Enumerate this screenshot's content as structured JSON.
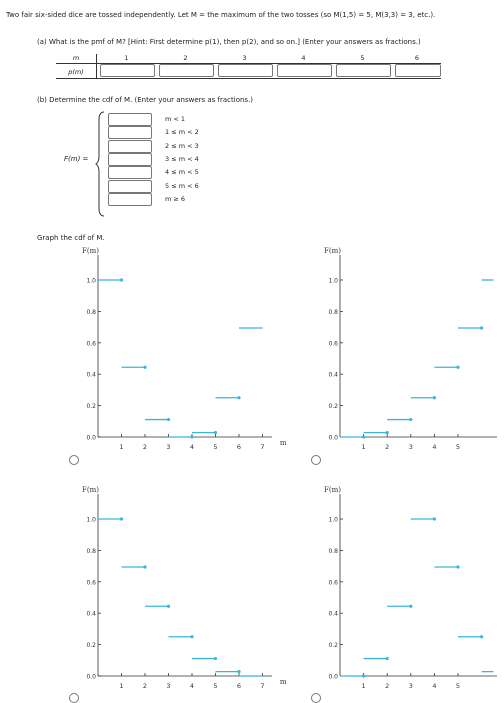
{
  "problem": "Two fair six-sided dice are tossed independently. Let M = the maximum of the two tosses (so M(1,5) = 5, M(3,3) = 3, etc.).",
  "part_a": {
    "prompt": "(a) What is the pmf of M? [Hint: First determine p(1), then p(2), and so on.] (Enter your answers as fractions.)",
    "row_labels": [
      "m",
      "p(m)"
    ],
    "columns": [
      "1",
      "2",
      "3",
      "4",
      "5",
      "6"
    ]
  },
  "part_b": {
    "prompt": "(b) Determine the cdf of M. (Enter your answers as fractions.)",
    "func_label": "F(m) =",
    "ranges": [
      "m < 1",
      "1 ≤ m < 2",
      "2 ≤ m < 3",
      "3 ≤ m < 4",
      "4 ≤ m < 5",
      "5 ≤ m < 6",
      "m ≥ 6"
    ]
  },
  "graph_prompt": "Graph the cdf of M.",
  "graph_colors": {
    "line": "#3ab4dc",
    "axis": "#333333"
  },
  "chart_data": [
    {
      "type": "step",
      "ylabel": "F(m)",
      "xlabel": "m",
      "x_ticks": [
        1,
        2,
        3,
        4,
        5,
        6,
        7
      ],
      "y_ticks": [
        "0.0",
        "0.2",
        "0.4",
        "0.6",
        "0.8",
        "1.0"
      ],
      "xlim": [
        0,
        7.4
      ],
      "ylim": [
        0,
        1.0
      ],
      "steps": [
        [
          0,
          1,
          1.0
        ],
        [
          1,
          2,
          0.4444
        ],
        [
          2,
          3,
          0.1111
        ],
        [
          3,
          4,
          0.0
        ],
        [
          4,
          5,
          0.0278
        ],
        [
          5,
          6,
          0.25
        ],
        [
          6,
          7,
          0.6944
        ]
      ]
    },
    {
      "type": "step",
      "ylabel": "F(m)",
      "xlabel": "",
      "x_ticks": [
        1,
        2,
        3,
        4,
        5
      ],
      "y_ticks": [
        "0.0",
        "0.2",
        "0.4",
        "0.6",
        "0.8",
        "1.0"
      ],
      "xlim": [
        0,
        6.2
      ],
      "ylim": [
        0,
        1.0
      ],
      "steps": [
        [
          0,
          1,
          0.0
        ],
        [
          1,
          2,
          0.0278
        ],
        [
          2,
          3,
          0.1111
        ],
        [
          3,
          4,
          0.25
        ],
        [
          4,
          5,
          0.4444
        ],
        [
          5,
          6,
          0.6944
        ],
        [
          6,
          6.5,
          1.0
        ]
      ]
    },
    {
      "type": "step",
      "ylabel": "F(m)",
      "xlabel": "m",
      "x_ticks": [
        1,
        2,
        3,
        4,
        5,
        6,
        7
      ],
      "y_ticks": [
        "0.0",
        "0.2",
        "0.4",
        "0.6",
        "0.8",
        "1.0"
      ],
      "xlim": [
        0,
        7.4
      ],
      "ylim": [
        0,
        1.0
      ],
      "steps": [
        [
          0,
          1,
          1.0
        ],
        [
          1,
          2,
          0.6944
        ],
        [
          2,
          3,
          0.4444
        ],
        [
          3,
          4,
          0.25
        ],
        [
          4,
          5,
          0.1111
        ],
        [
          5,
          6,
          0.0278
        ],
        [
          6,
          7,
          0.0
        ]
      ]
    },
    {
      "type": "step",
      "ylabel": "F(m)",
      "xlabel": "",
      "x_ticks": [
        1,
        2,
        3,
        4,
        5
      ],
      "y_ticks": [
        "0.0",
        "0.2",
        "0.4",
        "0.6",
        "0.8",
        "1.0"
      ],
      "xlim": [
        0,
        6.2
      ],
      "ylim": [
        0,
        1.0
      ],
      "steps": [
        [
          0,
          1,
          0.0
        ],
        [
          1,
          2,
          0.1111
        ],
        [
          2,
          3,
          0.4444
        ],
        [
          3,
          4,
          1.0
        ],
        [
          4,
          5,
          0.6944
        ],
        [
          5,
          6,
          0.25
        ],
        [
          6,
          6.5,
          0.0278
        ]
      ]
    }
  ]
}
